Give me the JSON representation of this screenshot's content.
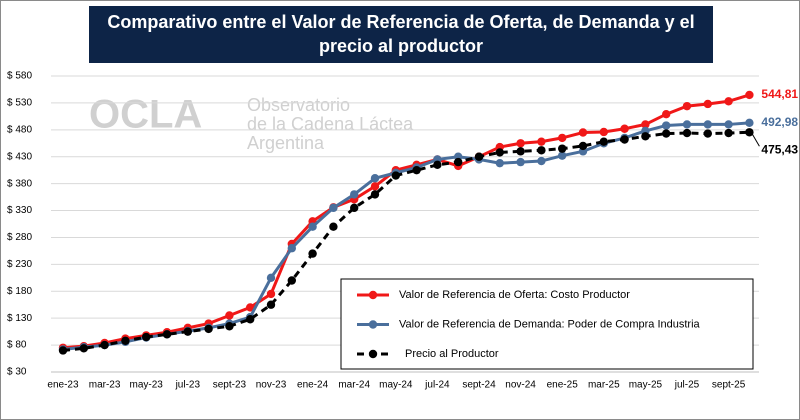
{
  "chart_data": {
    "type": "line",
    "title": "Comparativo entre el Valor de Referencia de Oferta, de Demanda y el precio al productor",
    "watermark": {
      "logo": "OCLA",
      "lines": [
        "Observatorio",
        "de la Cadena Láctea",
        "Argentina"
      ]
    },
    "categories": [
      "ene-23",
      null,
      "mar-23",
      null,
      "may-23",
      null,
      "jul-23",
      null,
      "sept-23",
      null,
      "nov-23",
      null,
      "ene-24",
      null,
      "mar-24",
      null,
      "may-24",
      null,
      "jul-24",
      null,
      "sept-24",
      null,
      "nov-24",
      null,
      "ene-25",
      null,
      "mar-25",
      null,
      "may-25",
      null,
      "jul-25",
      null,
      "sept-25",
      null
    ],
    "ylim": [
      30,
      580
    ],
    "yticks": [
      {
        "value": 30,
        "label": "$ 30"
      },
      {
        "value": 80,
        "label": "$ 80"
      },
      {
        "value": 130,
        "label": "$ 130"
      },
      {
        "value": 180,
        "label": "$ 180"
      },
      {
        "value": 230,
        "label": "$ 230"
      },
      {
        "value": 280,
        "label": "$ 280"
      },
      {
        "value": 330,
        "label": "$ 330"
      },
      {
        "value": 380,
        "label": "$ 380"
      },
      {
        "value": 430,
        "label": "$ 430"
      },
      {
        "value": 480,
        "label": "$ 480"
      },
      {
        "value": 530,
        "label": "$ 530"
      },
      {
        "value": 580,
        "label": "$ 580"
      }
    ],
    "grid": true,
    "legend": "lower-right",
    "series": [
      {
        "name": "Valor de Referencia de Oferta: Costo Productor",
        "color": "#f01818",
        "dashed": false,
        "values": [
          75,
          78,
          84,
          92,
          98,
          104,
          112,
          120,
          135,
          150,
          175,
          268,
          310,
          336,
          351,
          375,
          405,
          415,
          425,
          413,
          430,
          448,
          455,
          458,
          465,
          475,
          476,
          482,
          490,
          509,
          524,
          528,
          533,
          544.81
        ],
        "value_labels": [
          null,
          null,
          null,
          null,
          null,
          null,
          null,
          null,
          null,
          null,
          null,
          null,
          null,
          null,
          null,
          null,
          null,
          null,
          null,
          null,
          null,
          null,
          null,
          null,
          null,
          null,
          null,
          null,
          null,
          null,
          null,
          null,
          null,
          "544,81"
        ]
      },
      {
        "name": "Valor de Referencia de Demanda: Poder de Compra Industria",
        "color": "#4a6f9c",
        "dashed": false,
        "values": [
          72,
          76,
          80,
          86,
          94,
          100,
          106,
          112,
          120,
          132,
          205,
          260,
          300,
          335,
          360,
          390,
          400,
          410,
          425,
          430,
          425,
          418,
          420,
          422,
          432,
          440,
          455,
          465,
          478,
          488,
          490,
          490,
          490,
          492.98
        ],
        "value_labels": [
          null,
          null,
          null,
          null,
          null,
          null,
          null,
          null,
          null,
          null,
          null,
          null,
          null,
          null,
          null,
          null,
          null,
          null,
          null,
          null,
          null,
          null,
          null,
          null,
          null,
          null,
          null,
          null,
          null,
          null,
          null,
          null,
          null,
          "492,98"
        ]
      },
      {
        "name": "Precio al Productor",
        "color": "#000000",
        "dashed": true,
        "values": [
          70,
          74,
          80,
          88,
          95,
          100,
          105,
          110,
          115,
          128,
          155,
          200,
          250,
          300,
          335,
          360,
          395,
          405,
          415,
          420,
          430,
          438,
          440,
          442,
          445,
          450,
          458,
          462,
          468,
          473,
          474,
          473,
          474,
          475.43
        ],
        "value_labels": [
          null,
          null,
          null,
          null,
          null,
          null,
          null,
          null,
          null,
          null,
          null,
          null,
          null,
          null,
          null,
          null,
          null,
          null,
          null,
          null,
          null,
          null,
          null,
          null,
          null,
          null,
          null,
          null,
          null,
          null,
          null,
          null,
          null,
          "475,43"
        ]
      }
    ]
  }
}
